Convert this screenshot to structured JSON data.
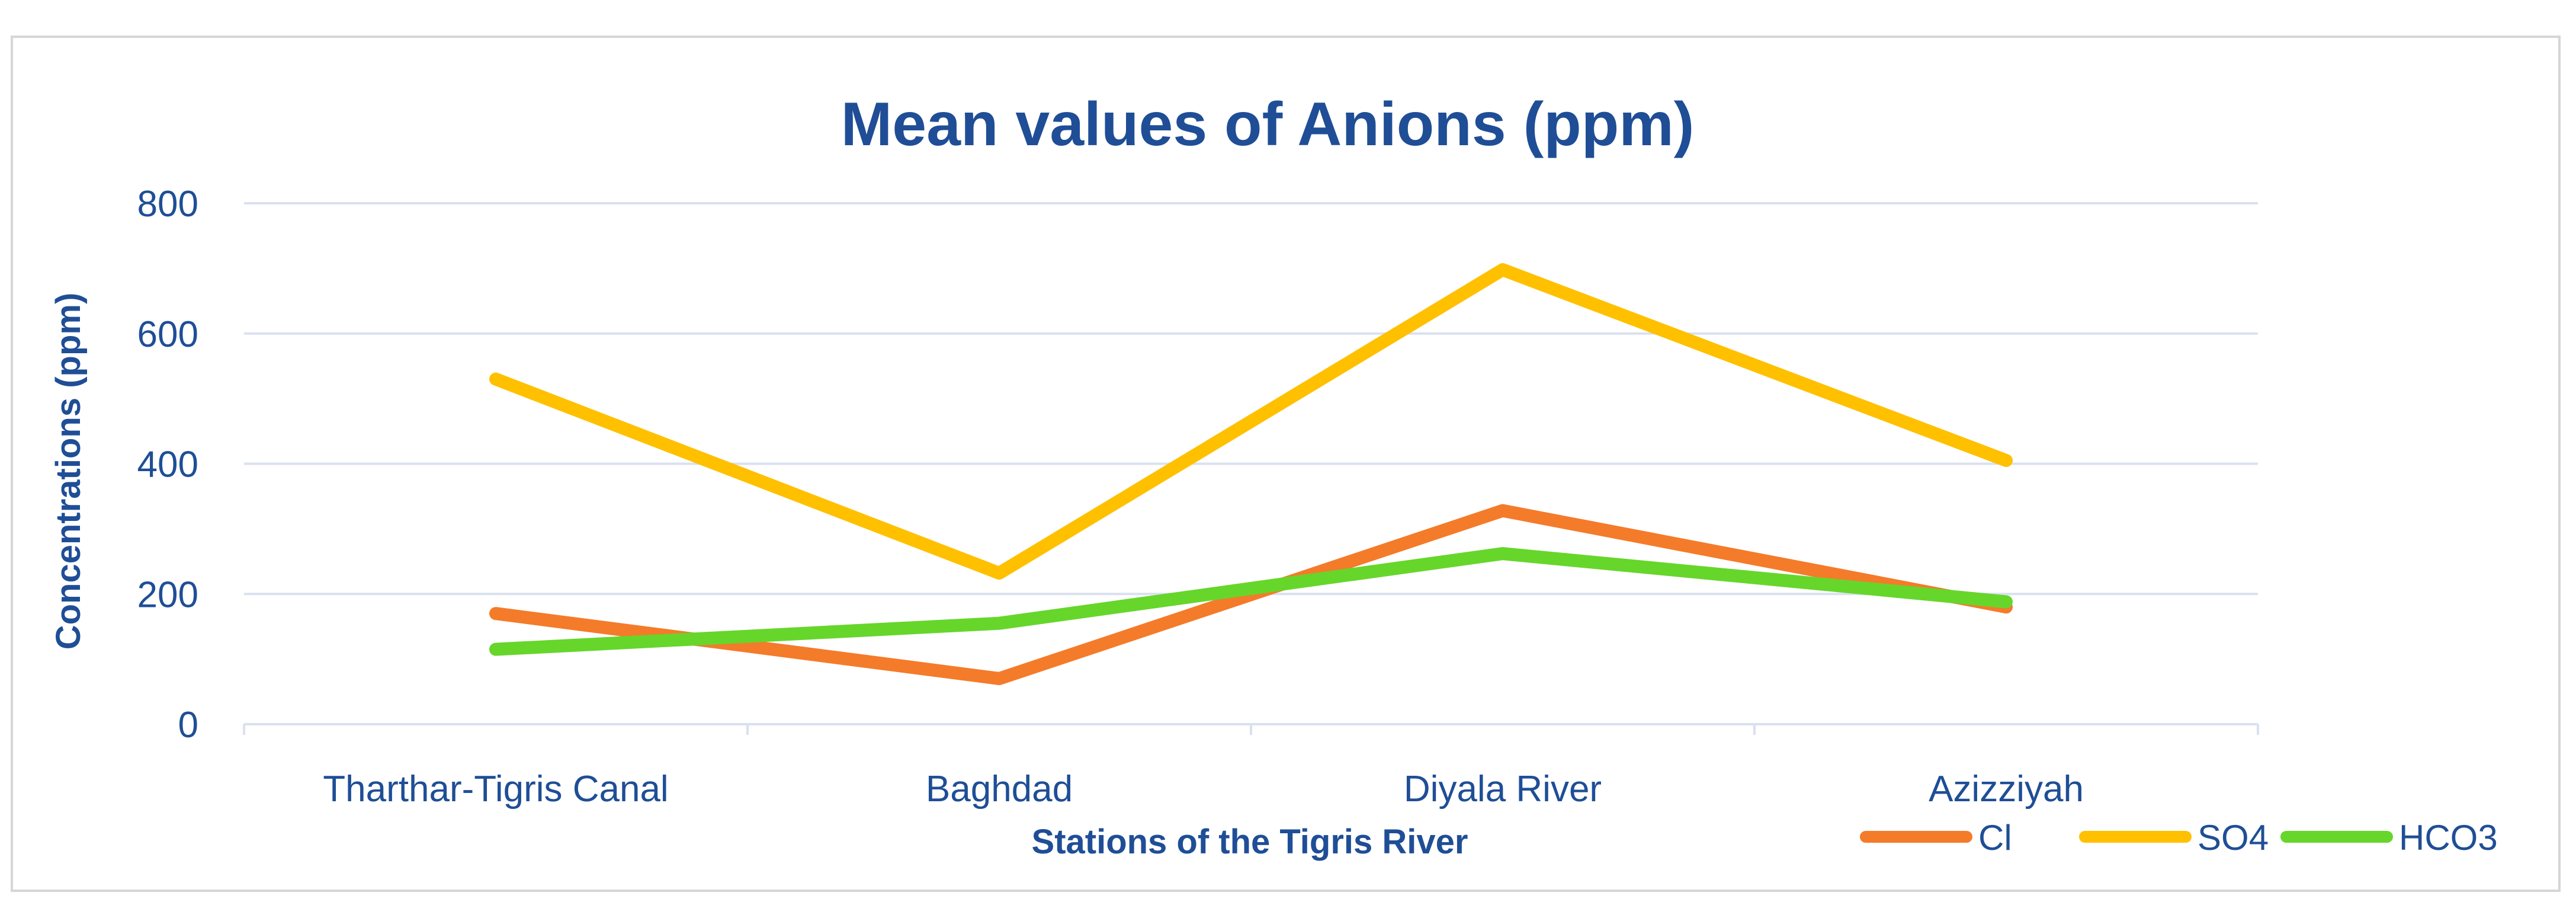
{
  "chart_data": {
    "type": "line",
    "title": "Mean values of Anions (ppm)",
    "xlabel": "Stations of the Tigris River",
    "ylabel": "Concentrations  (ppm)",
    "categories": [
      "Tharthar-Tigris Canal",
      "Baghdad",
      "Diyala River",
      "Azizziyah"
    ],
    "ylim": [
      0,
      800
    ],
    "yticks": [
      0,
      200,
      400,
      600,
      800
    ],
    "grid": true,
    "legend_position": "bottom-right",
    "series": [
      {
        "name": "Cl",
        "color": "#f47b2a",
        "values": [
          170,
          70,
          328,
          180
        ]
      },
      {
        "name": "SO4",
        "color": "#ffc000",
        "values": [
          530,
          232,
          698,
          405
        ]
      },
      {
        "name": "HCO3",
        "color": "#66d62b",
        "values": [
          115,
          155,
          262,
          188
        ]
      }
    ]
  }
}
